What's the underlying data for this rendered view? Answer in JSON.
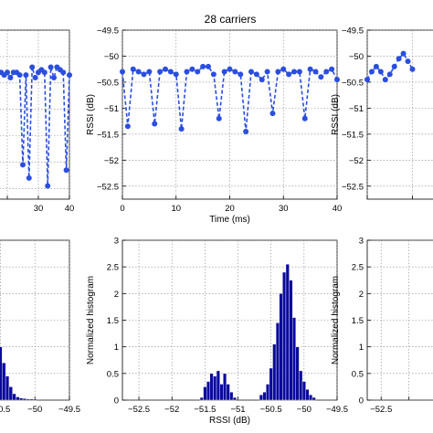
{
  "figure_title": "28 carriers",
  "chart_data": [
    {
      "id": "left-rssi",
      "type": "line",
      "xlabel": "",
      "ylabel": "",
      "xlim": [
        0,
        40
      ],
      "ylim": [
        -52.7,
        -49.5
      ],
      "xticks": [
        30,
        40
      ],
      "yticks": [],
      "grid": true,
      "color": "#2a4ee0",
      "series": [
        {
          "x": [
            0,
            1,
            2,
            3,
            4,
            5,
            6,
            7,
            8,
            9,
            10,
            11,
            12,
            13,
            14,
            15,
            16,
            17,
            18,
            19,
            20,
            21,
            22,
            23,
            24,
            25,
            26,
            27,
            28,
            29,
            30,
            31,
            32,
            33,
            34,
            35,
            36,
            37,
            38,
            39,
            40
          ],
          "values": [
            -50.3,
            -50.35,
            -50.3,
            -50.25,
            -50.4,
            -50.3,
            -50.35,
            -50.3,
            -50.3,
            -50.35,
            -50.4,
            -50.3,
            -50.3,
            -50.35,
            -50.4,
            -50.3,
            -50.35,
            -50.3,
            -50.3,
            -50.35,
            -50.3,
            -50.4,
            -50.3,
            -50.3,
            -50.35,
            -52.05,
            -50.35,
            -52.3,
            -50.2,
            -50.4,
            -50.3,
            -50.25,
            -50.3,
            -52.45,
            -50.2,
            -50.4,
            -50.2,
            -50.25,
            -50.3,
            -52.15,
            -50.35
          ]
        }
      ]
    },
    {
      "id": "center-rssi",
      "type": "line",
      "xlabel": "Time (ms)",
      "ylabel": "RSSI (dB)",
      "xlim": [
        0,
        40
      ],
      "ylim": [
        -52.75,
        -49.5
      ],
      "xticks": [
        0,
        10,
        20,
        30,
        40
      ],
      "yticks": [
        -49.5,
        -50,
        -50.5,
        -51,
        -51.5,
        -52,
        -52.5
      ],
      "grid": true,
      "color": "#2a4ee0",
      "series": [
        {
          "x": [
            0,
            1,
            2,
            3,
            4,
            5,
            6,
            7,
            8,
            9,
            10,
            11,
            12,
            13,
            14,
            15,
            16,
            17,
            18,
            19,
            20,
            21,
            22,
            23,
            24,
            25,
            26,
            27,
            28,
            29,
            30,
            31,
            32,
            33,
            34,
            35,
            36,
            37,
            38,
            39,
            40
          ],
          "values": [
            -50.3,
            -51.35,
            -50.25,
            -50.3,
            -50.35,
            -50.3,
            -51.3,
            -50.3,
            -50.25,
            -50.3,
            -50.35,
            -51.4,
            -50.3,
            -50.25,
            -50.3,
            -50.2,
            -50.2,
            -50.35,
            -51.2,
            -50.3,
            -50.25,
            -50.3,
            -50.35,
            -51.45,
            -50.3,
            -50.35,
            -50.45,
            -50.3,
            -51.1,
            -50.3,
            -50.25,
            -50.35,
            -50.3,
            -50.3,
            -51.2,
            -50.25,
            -50.3,
            -50.4,
            -50.3,
            -50.25,
            -50.45
          ]
        }
      ]
    },
    {
      "id": "right-rssi",
      "type": "line",
      "xlabel": "",
      "ylabel": "RSSI (dB)",
      "xlim": [
        0,
        40
      ],
      "ylim": [
        -52.75,
        -49.5
      ],
      "xticks": [],
      "yticks": [
        -49.5,
        -50,
        -50.5,
        -51,
        -51.5,
        -52,
        -52.5
      ],
      "grid": true,
      "color": "#2a4ee0",
      "series": [
        {
          "x": [
            0,
            1,
            2,
            3,
            4,
            5,
            6,
            7,
            8,
            9,
            10
          ],
          "values": [
            -50.45,
            -50.3,
            -50.2,
            -50.3,
            -50.45,
            -50.35,
            -50.2,
            -50.05,
            -49.95,
            -50.1,
            -50.25
          ]
        }
      ]
    },
    {
      "id": "left-hist",
      "type": "bar",
      "xlabel": "",
      "ylabel": "",
      "xlim": [
        -51.3,
        -49.5
      ],
      "ylim": [
        0,
        3
      ],
      "xticks": [
        -50.5,
        -50,
        -49.5
      ],
      "xticklabels": [
        "-50.5",
        "−50",
        "−49.5"
      ],
      "yticks": [],
      "grid": true,
      "bin_width": 0.05,
      "color": "#0a0a9c",
      "bins": [
        -51.25,
        -51.2,
        -51.15,
        -51.1,
        -51.05,
        -51.0,
        -50.95,
        -50.9,
        -50.85,
        -50.8,
        -50.75,
        -50.7,
        -50.65,
        -50.6,
        -50.55,
        -50.5,
        -50.45,
        -50.4,
        -50.35,
        -50.3,
        -50.25,
        -50.2,
        -50.15,
        -50.1,
        -50.05,
        -50.0
      ],
      "values": [
        0.05,
        0.2,
        0.5,
        0.9,
        1.45,
        2.0,
        2.85,
        2.5,
        1.3,
        2.15,
        2.4,
        2.85,
        2.55,
        1.85,
        1.5,
        1.0,
        0.7,
        0.45,
        0.25,
        0.12,
        0.06,
        0.04,
        0.03,
        0.02,
        0.02,
        0.02
      ]
    },
    {
      "id": "center-hist",
      "type": "bar",
      "xlabel": "RSSI (dB)",
      "ylabel": "Normalized histogram",
      "xlim": [
        -52.75,
        -49.5
      ],
      "ylim": [
        0,
        3
      ],
      "xticks": [
        -52.5,
        -52,
        -51.5,
        -51,
        -50.5,
        -50,
        -49.5
      ],
      "xticklabels": [
        "−52.5",
        "−52",
        "−51.5",
        "−51",
        "−50.5",
        "−50",
        "−49.5"
      ],
      "yticks": [
        0,
        0.5,
        1,
        1.5,
        2,
        2.5,
        3
      ],
      "grid": true,
      "bin_width": 0.05,
      "color": "#0a0a9c",
      "bins": [
        -51.55,
        -51.5,
        -51.45,
        -51.4,
        -51.35,
        -51.3,
        -51.25,
        -51.2,
        -51.15,
        -51.1,
        -51.05,
        -50.65,
        -50.6,
        -50.55,
        -50.5,
        -50.45,
        -50.4,
        -50.35,
        -50.3,
        -50.25,
        -50.2,
        -50.15,
        -50.1,
        -50.05,
        -50.0,
        -49.95,
        -49.9,
        -49.85
      ],
      "values": [
        0.05,
        0.25,
        0.35,
        0.5,
        0.45,
        0.55,
        0.3,
        0.5,
        0.3,
        0.15,
        0.05,
        0.1,
        0.15,
        0.3,
        0.6,
        1.05,
        1.45,
        2.0,
        2.4,
        2.55,
        2.25,
        1.55,
        1.0,
        0.55,
        0.35,
        0.2,
        0.1,
        0.05
      ]
    },
    {
      "id": "right-hist",
      "type": "bar",
      "xlabel": "",
      "ylabel": "Normalized histogram",
      "xlim": [
        -52.75,
        -49.5
      ],
      "ylim": [
        0,
        3
      ],
      "xticks": [
        -52.5
      ],
      "xticklabels": [
        "−52.5"
      ],
      "yticks": [
        0,
        0.5,
        1,
        1.5,
        2,
        2.5,
        3
      ],
      "grid": true,
      "bin_width": 0.05,
      "color": "#0a0a9c",
      "bins": [],
      "values": []
    }
  ]
}
